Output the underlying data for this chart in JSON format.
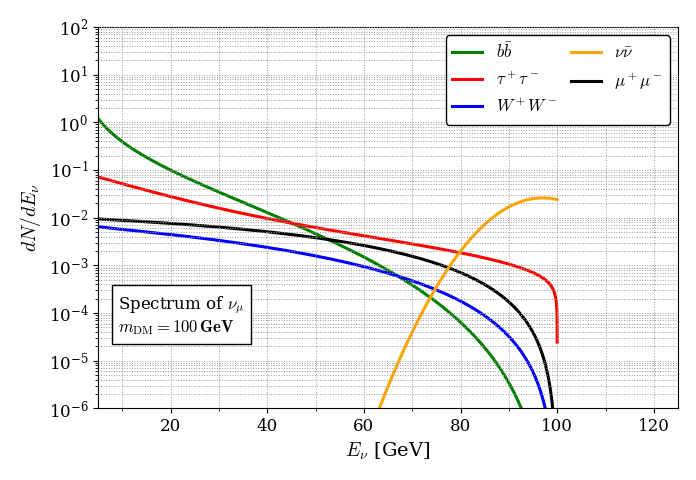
{
  "title": "",
  "xlabel": "$E_\\nu$ [GeV]",
  "ylabel": "$dN/dE_\\nu$",
  "xlim": [
    5,
    125
  ],
  "ylim_log": [
    -6,
    2
  ],
  "m_DM": 100,
  "channels": {
    "bb": {
      "color": "#008000",
      "label": "$b\\bar{b}$"
    },
    "WW": {
      "color": "#0000ff",
      "label": "$W^+W^-$"
    },
    "mumu": {
      "color": "#000000",
      "label": "$\\mu^+\\mu^-$"
    },
    "tautau": {
      "color": "#ff0000",
      "label": "$\\tau^+\\tau^-$"
    },
    "nunu": {
      "color": "#ffa500",
      "label": "$\\nu\\bar{\\nu}$"
    }
  },
  "line_width": 2.2,
  "grid_color": "#999999",
  "background_color": "#ffffff"
}
